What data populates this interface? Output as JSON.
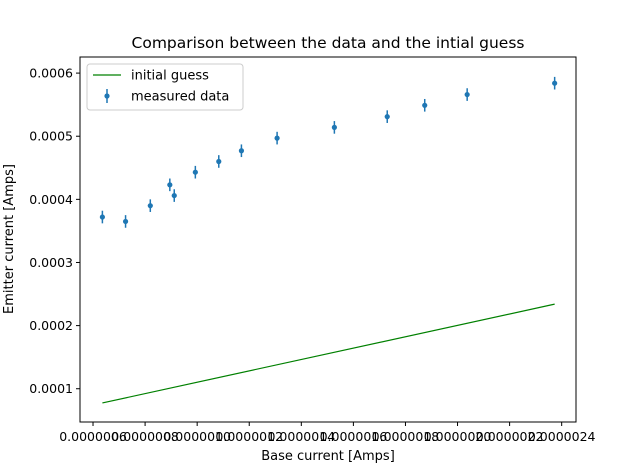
{
  "chart_data": {
    "type": "scatter",
    "title": "Comparison between the data and the intial guess",
    "xlabel": "Base current [Amps]",
    "ylabel": "Emitter current [Amps]",
    "xlim": [
      5.5e-07,
      2.455e-06
    ],
    "ylim": [
      4.73e-05,
      0.0006255
    ],
    "xticks": [
      6e-07,
      8e-07,
      1e-06,
      1.2e-06,
      1.4e-06,
      1.6e-06,
      1.8e-06,
      2e-06,
      2.2e-06,
      2.4e-06
    ],
    "xtick_labels": [
      "0.0000006",
      "0.0000008",
      "0.0000010",
      "0.0000012",
      "0.0000014",
      "0.0000016",
      "0.0000018",
      "0.0000020",
      "0.0000022",
      "0.0000024"
    ],
    "yticks": [
      0.0001,
      0.0002,
      0.0003,
      0.0004,
      0.0005,
      0.0006
    ],
    "ytick_labels": [
      "0.0001",
      "0.0002",
      "0.0003",
      "0.0004",
      "0.0005",
      "0.0006"
    ],
    "grid": false,
    "legend_position": "top-left",
    "series": [
      {
        "name": "initial guess",
        "kind": "line",
        "color": "#008000",
        "x": [
          6.36e-07,
          2.373e-06
        ],
        "y": [
          7.75e-05,
          0.000234
        ]
      },
      {
        "name": "measured data",
        "kind": "errorbar",
        "color": "#1f77b4",
        "x": [
          6.36e-07,
          7.25e-07,
          8.2e-07,
          8.95e-07,
          9.12e-07,
          9.93e-07,
          1.083e-06,
          1.17e-06,
          1.307e-06,
          1.527e-06,
          1.73e-06,
          1.874e-06,
          2.037e-06,
          2.373e-06
        ],
        "y": [
          0.000372,
          0.000365,
          0.00039,
          0.000423,
          0.000406,
          0.000443,
          0.00046,
          0.000477,
          0.000497,
          0.000514,
          0.000531,
          0.000549,
          0.000566,
          0.000584
        ],
        "yerr": [
          1e-05,
          1e-05,
          1e-05,
          1e-05,
          1e-05,
          1e-05,
          1e-05,
          1e-05,
          1e-05,
          1e-05,
          1e-05,
          1e-05,
          1e-05,
          1e-05
        ]
      }
    ]
  }
}
